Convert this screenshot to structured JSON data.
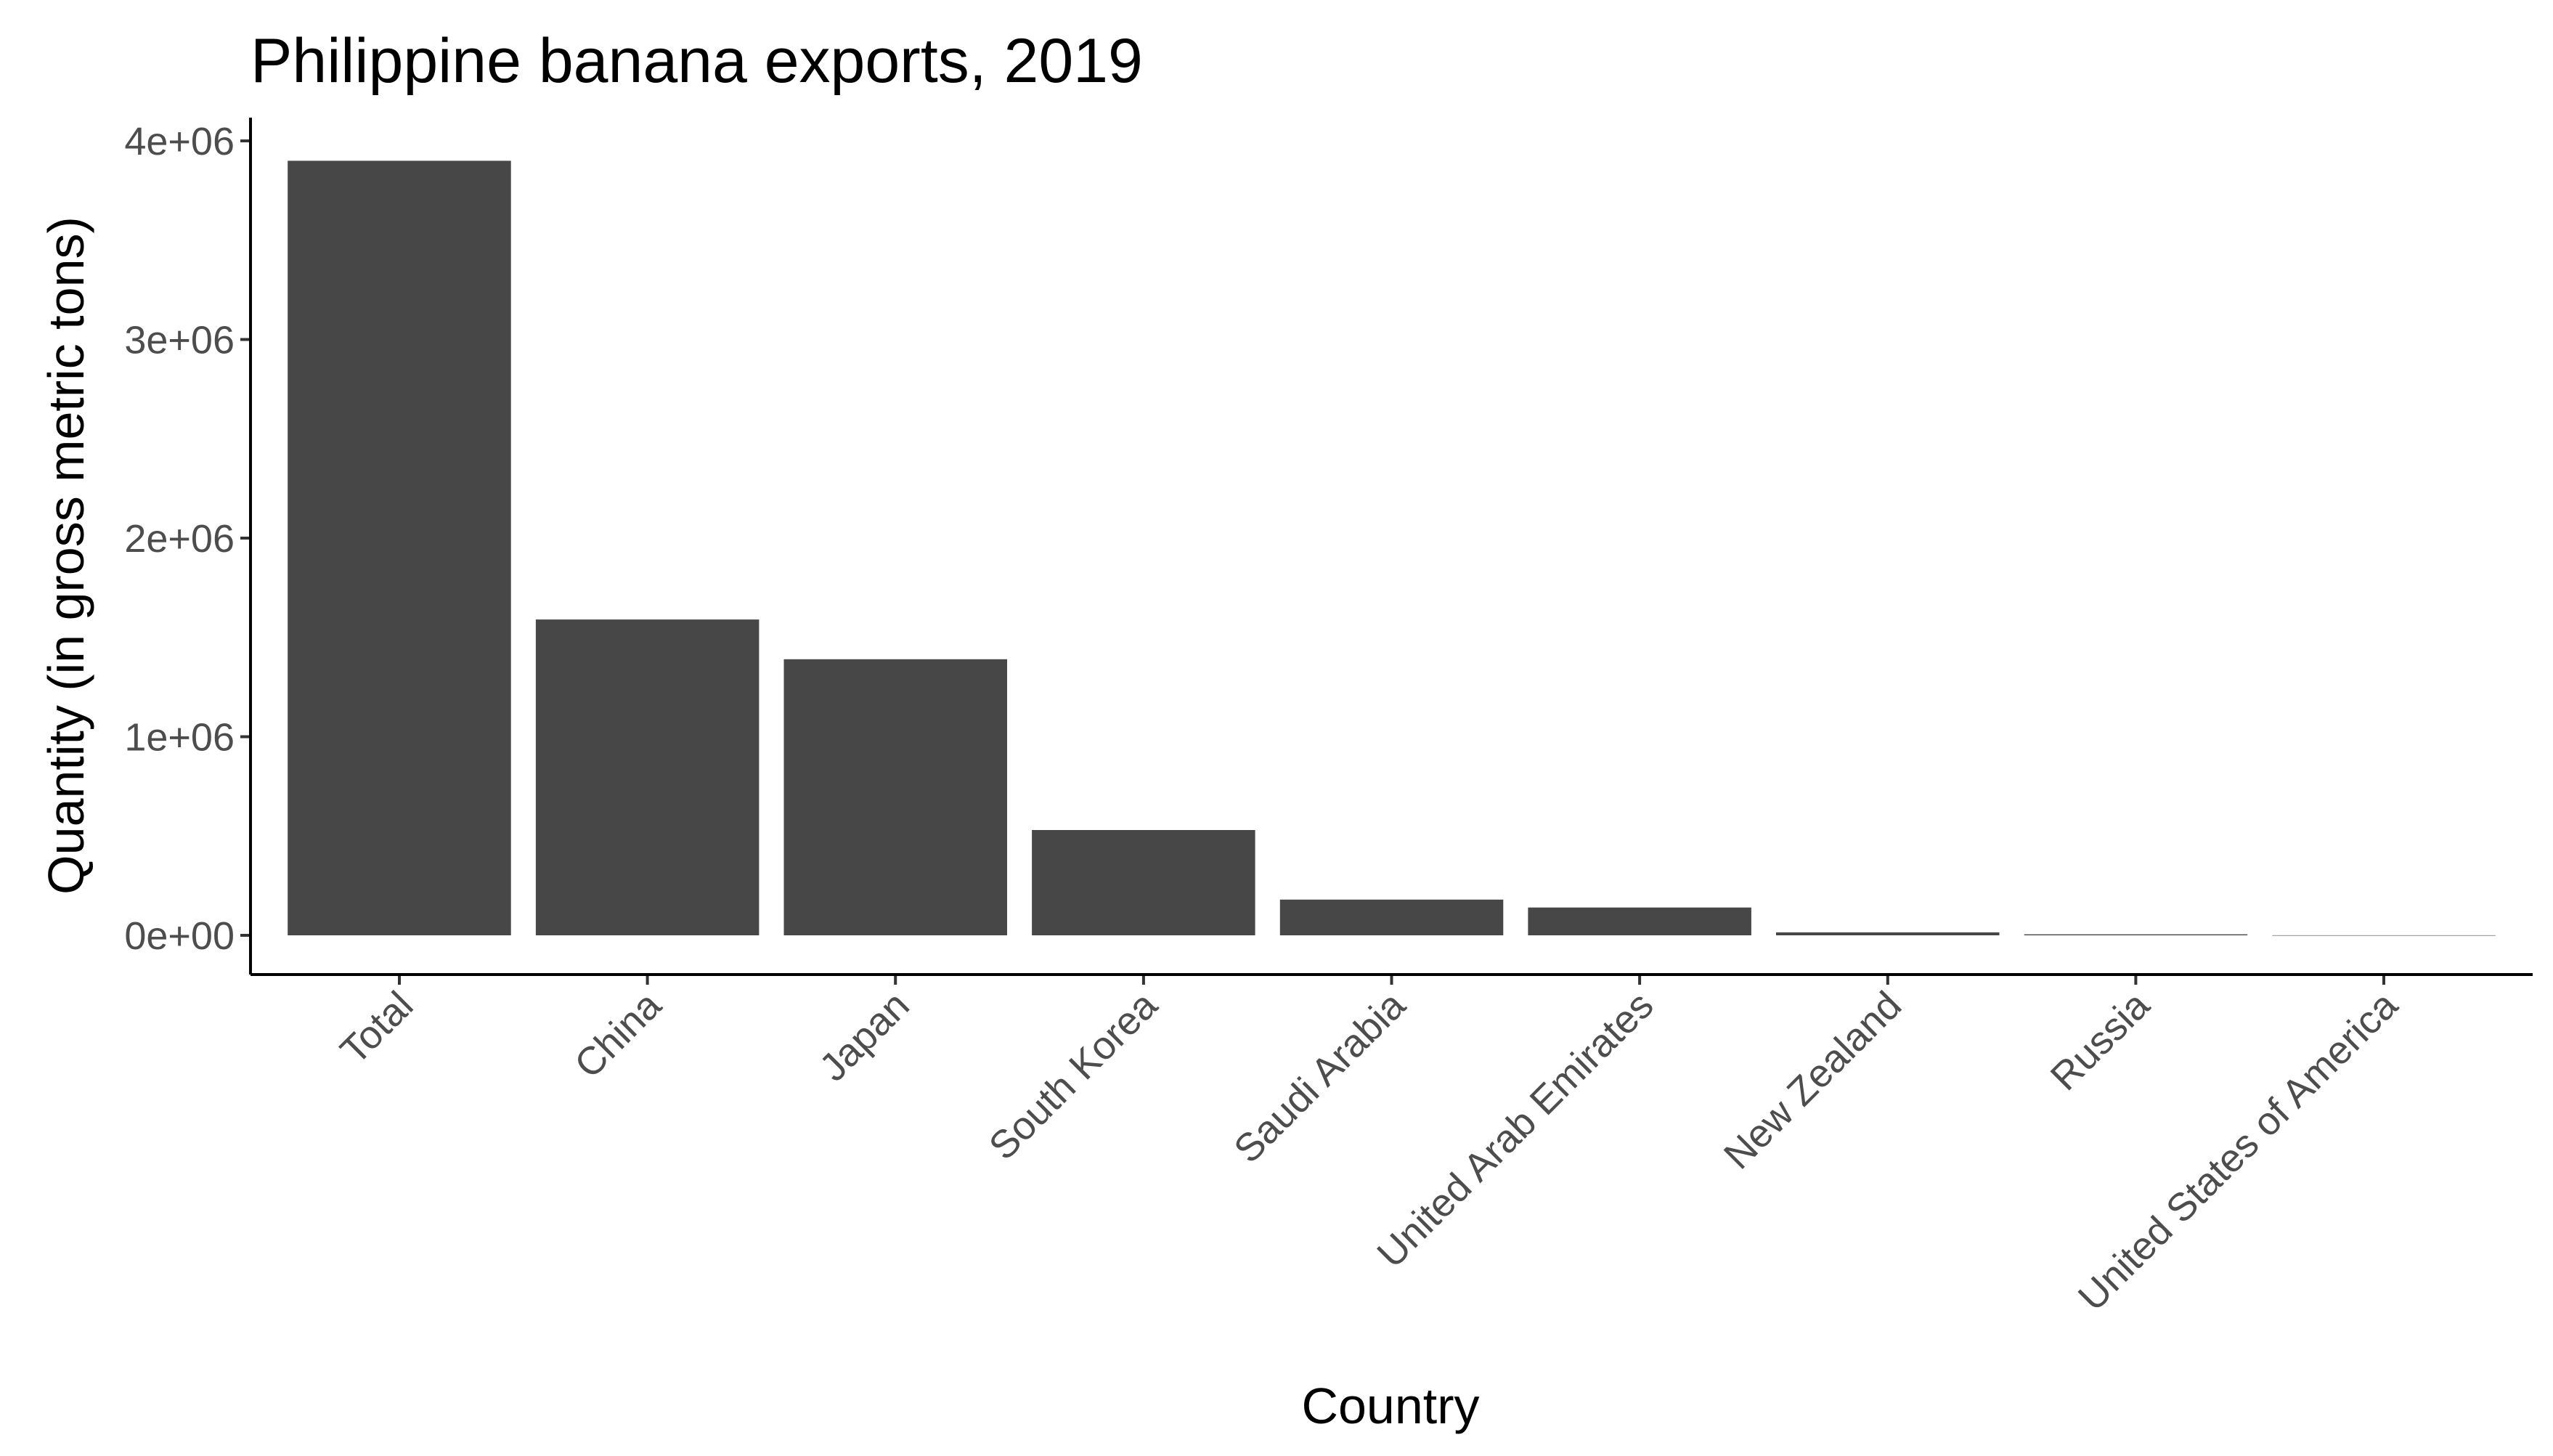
{
  "chart_data": {
    "type": "bar",
    "title": "Philippine banana exports, 2019",
    "xlabel": "Country",
    "ylabel": "Quantity (in gross metric tons)",
    "categories": [
      "Total",
      "China",
      "Japan",
      "South Korea",
      "Saudi Arabia",
      "United Arab Emirates",
      "New Zealand",
      "Russia",
      "United States of America"
    ],
    "values": [
      3900000,
      1590000,
      1390000,
      530000,
      180000,
      140000,
      15000,
      5000,
      500
    ],
    "ylim": [
      0,
      4000000
    ],
    "yticks": [
      0,
      1000000,
      2000000,
      3000000,
      4000000
    ],
    "ytick_labels": [
      "0e+00",
      "1e+06",
      "2e+06",
      "3e+06",
      "4e+06"
    ],
    "bar_color": "#474747",
    "grid": false,
    "legend": "none"
  }
}
